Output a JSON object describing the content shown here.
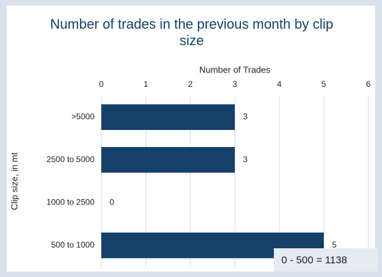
{
  "chart_data": {
    "type": "bar",
    "orientation": "horizontal",
    "title": "Number of trades in the previous month by clip size",
    "x_label": "Number of Trades",
    "y_label": "Clip size, in mt",
    "categories": [
      ">5000",
      "2500 to 5000",
      "1000 to 2500",
      "500 to 1000"
    ],
    "values": [
      3,
      3,
      0,
      5
    ],
    "color": "#15406a",
    "xlim": [
      0,
      6
    ],
    "xticks": [
      0,
      1,
      2,
      3,
      4,
      5,
      6
    ],
    "grid": true,
    "annotation": "0 - 500 = 1138"
  }
}
